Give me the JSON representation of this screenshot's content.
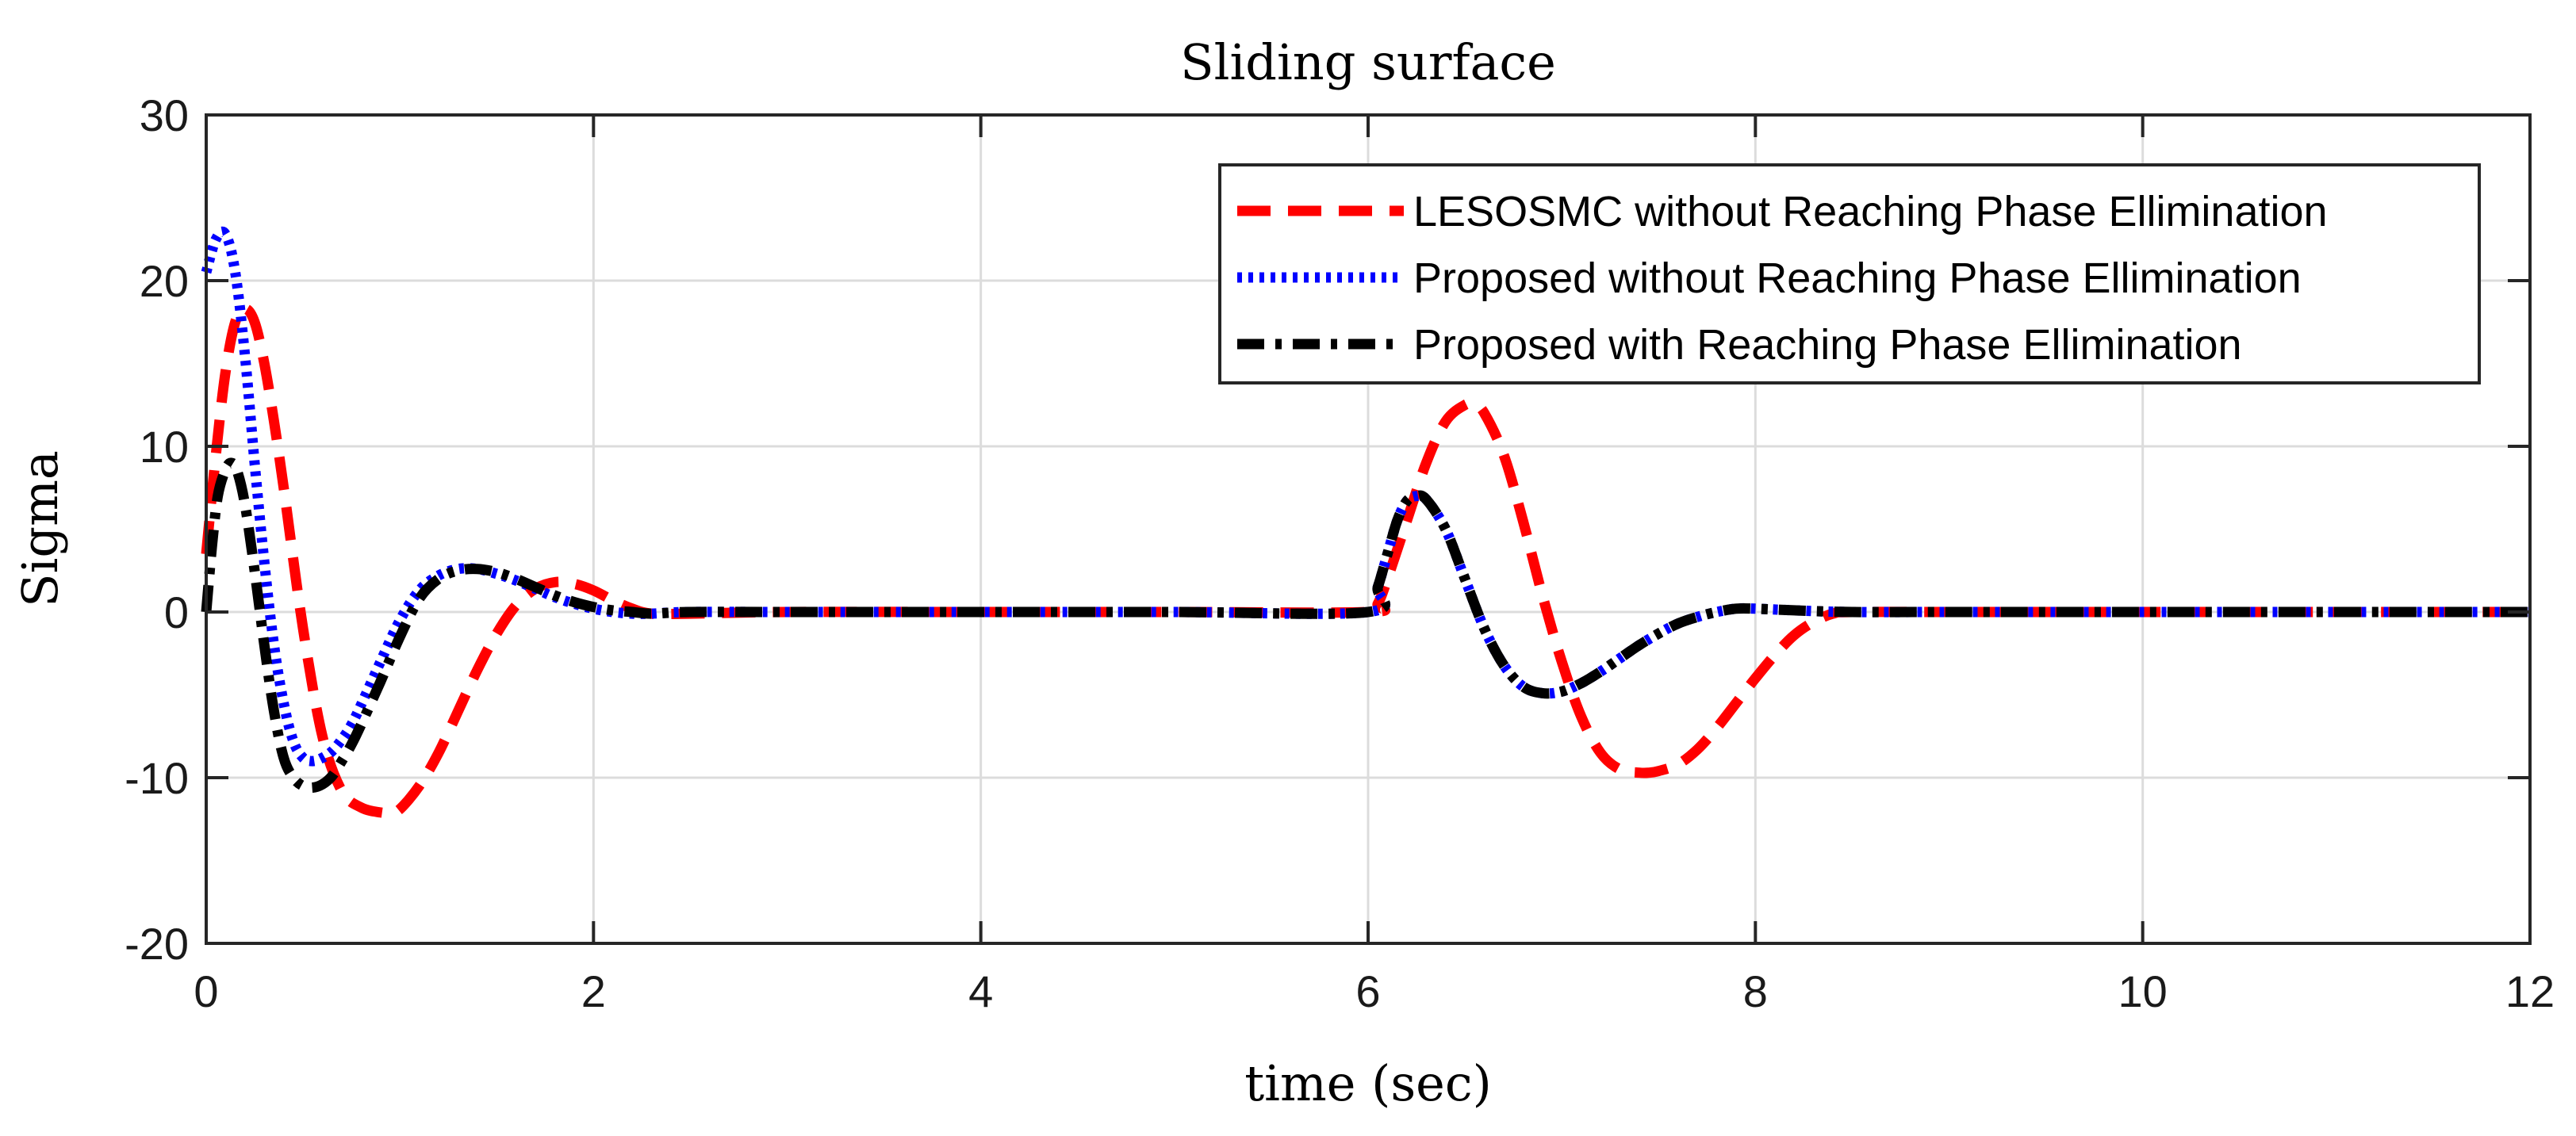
{
  "chart_data": {
    "type": "line",
    "title": "Sliding surface",
    "xlabel": "time (sec)",
    "ylabel": "Sigma",
    "xlim": [
      0,
      12
    ],
    "ylim": [
      -20,
      30
    ],
    "xticks": [
      0,
      2,
      4,
      6,
      8,
      10,
      12
    ],
    "yticks": [
      -20,
      -10,
      0,
      10,
      20,
      30
    ],
    "xtick_labels": [
      "0",
      "2",
      "4",
      "6",
      "8",
      "10",
      "12"
    ],
    "ytick_labels": [
      "-20",
      "-10",
      "0",
      "10",
      "20",
      "30"
    ],
    "grid": true,
    "legend_position": "top-right",
    "series": [
      {
        "name": "LESOSMC without Reaching Phase Ellimination",
        "color": "#ff0000",
        "style": "dashed",
        "x": [
          0,
          0.05,
          0.1,
          0.15,
          0.2,
          0.25,
          0.3,
          0.35,
          0.4,
          0.5,
          0.6,
          0.7,
          0.8,
          0.9,
          0.95,
          1.0,
          1.1,
          1.2,
          1.3,
          1.4,
          1.5,
          1.6,
          1.7,
          1.8,
          1.9,
          2.0,
          2.1,
          2.2,
          2.3,
          2.5,
          3.0,
          4.0,
          5.0,
          6.0,
          6.05,
          6.1,
          6.2,
          6.3,
          6.4,
          6.5,
          6.55,
          6.6,
          6.7,
          6.8,
          6.9,
          7.0,
          7.1,
          7.2,
          7.3,
          7.4,
          7.45,
          7.5,
          7.6,
          7.7,
          7.8,
          7.9,
          8.0,
          8.1,
          8.2,
          8.3,
          8.4,
          8.5,
          9.0,
          10.0,
          11.0,
          12.0
        ],
        "values": [
          3.5,
          9.5,
          14.5,
          17.5,
          18.3,
          17.5,
          15.0,
          11.5,
          7.5,
          -1.0,
          -7.5,
          -10.8,
          -11.8,
          -12.1,
          -12.1,
          -11.9,
          -10.5,
          -8.5,
          -6.0,
          -3.5,
          -1.3,
          0.4,
          1.4,
          1.8,
          1.7,
          1.3,
          0.7,
          0.2,
          -0.1,
          -0.1,
          0,
          0,
          0,
          0,
          0.5,
          2.0,
          5.5,
          9.0,
          11.5,
          12.5,
          12.5,
          12.0,
          9.5,
          5.5,
          1.0,
          -3.0,
          -6.3,
          -8.5,
          -9.5,
          -9.7,
          -9.7,
          -9.6,
          -9.2,
          -8.3,
          -7.0,
          -5.5,
          -4.0,
          -2.6,
          -1.4,
          -0.6,
          -0.1,
          0,
          0,
          0,
          0,
          0
        ]
      },
      {
        "name": "Proposed without Reaching Phase Ellimination",
        "color": "#0000ff",
        "style": "dotted",
        "x": [
          0,
          0.05,
          0.1,
          0.15,
          0.2,
          0.25,
          0.3,
          0.35,
          0.4,
          0.45,
          0.5,
          0.55,
          0.6,
          0.65,
          0.7,
          0.75,
          0.8,
          0.9,
          1.0,
          1.1,
          1.2,
          1.3,
          1.4,
          1.5,
          1.6,
          1.7,
          1.8,
          1.9,
          2.0,
          2.1,
          2.2,
          2.3,
          2.5,
          3.0,
          4.0,
          5.0,
          6.0,
          6.05,
          6.1,
          6.15,
          6.2,
          6.25,
          6.3,
          6.4,
          6.5,
          6.6,
          6.7,
          6.8,
          6.9,
          7.0,
          7.1,
          7.2,
          7.3,
          7.4,
          7.5,
          7.6,
          7.7,
          7.8,
          7.9,
          8.0,
          8.2,
          8.5,
          9.0,
          10.0,
          11.0,
          12.0
        ],
        "values": [
          20.5,
          22.5,
          22.8,
          20.5,
          15.5,
          9.0,
          3.0,
          -2.0,
          -5.5,
          -7.8,
          -8.8,
          -9.0,
          -8.8,
          -8.4,
          -7.7,
          -6.8,
          -5.6,
          -3.0,
          -0.5,
          1.3,
          2.2,
          2.6,
          2.6,
          2.3,
          1.9,
          1.4,
          0.9,
          0.5,
          0.2,
          0,
          -0.1,
          -0.1,
          0,
          0,
          0,
          0,
          0,
          1.5,
          3.5,
          5.5,
          6.7,
          7.0,
          6.8,
          5.0,
          2.0,
          -1.0,
          -3.2,
          -4.5,
          -4.9,
          -4.8,
          -4.3,
          -3.6,
          -2.8,
          -2.0,
          -1.3,
          -0.7,
          -0.3,
          0,
          0.2,
          0.2,
          0.1,
          0,
          0,
          0,
          0,
          0
        ]
      },
      {
        "name": "Proposed with Reaching Phase Ellimination",
        "color": "#000000",
        "style": "dashdot",
        "x": [
          0,
          0.03,
          0.06,
          0.1,
          0.13,
          0.16,
          0.2,
          0.25,
          0.3,
          0.35,
          0.4,
          0.45,
          0.5,
          0.55,
          0.6,
          0.65,
          0.7,
          0.75,
          0.8,
          0.9,
          1.0,
          1.1,
          1.2,
          1.3,
          1.4,
          1.5,
          1.6,
          1.7,
          1.8,
          1.9,
          2.0,
          2.1,
          2.2,
          2.3,
          2.5,
          3.0,
          4.0,
          5.0,
          6.0,
          6.05,
          6.1,
          6.15,
          6.2,
          6.25,
          6.3,
          6.4,
          6.5,
          6.6,
          6.7,
          6.8,
          6.9,
          7.0,
          7.1,
          7.2,
          7.3,
          7.4,
          7.5,
          7.6,
          7.7,
          7.8,
          7.9,
          8.0,
          8.2,
          8.5,
          9.0,
          10.0,
          11.0,
          12.0
        ],
        "values": [
          0,
          4.0,
          7.0,
          8.6,
          9.0,
          8.5,
          6.5,
          2.5,
          -2.0,
          -6.0,
          -8.8,
          -10.0,
          -10.5,
          -10.6,
          -10.4,
          -9.9,
          -9.0,
          -8.0,
          -6.8,
          -4.2,
          -1.5,
          0.8,
          2.0,
          2.5,
          2.6,
          2.4,
          2.0,
          1.5,
          1.0,
          0.6,
          0.3,
          0.1,
          0,
          -0.1,
          0,
          0,
          0,
          0,
          0,
          1.5,
          3.5,
          5.5,
          6.7,
          7.0,
          6.8,
          5.0,
          2.0,
          -1.0,
          -3.2,
          -4.5,
          -4.9,
          -4.8,
          -4.3,
          -3.6,
          -2.8,
          -2.0,
          -1.3,
          -0.7,
          -0.3,
          0,
          0.2,
          0.2,
          0.1,
          0,
          0,
          0,
          0,
          0
        ]
      }
    ]
  }
}
